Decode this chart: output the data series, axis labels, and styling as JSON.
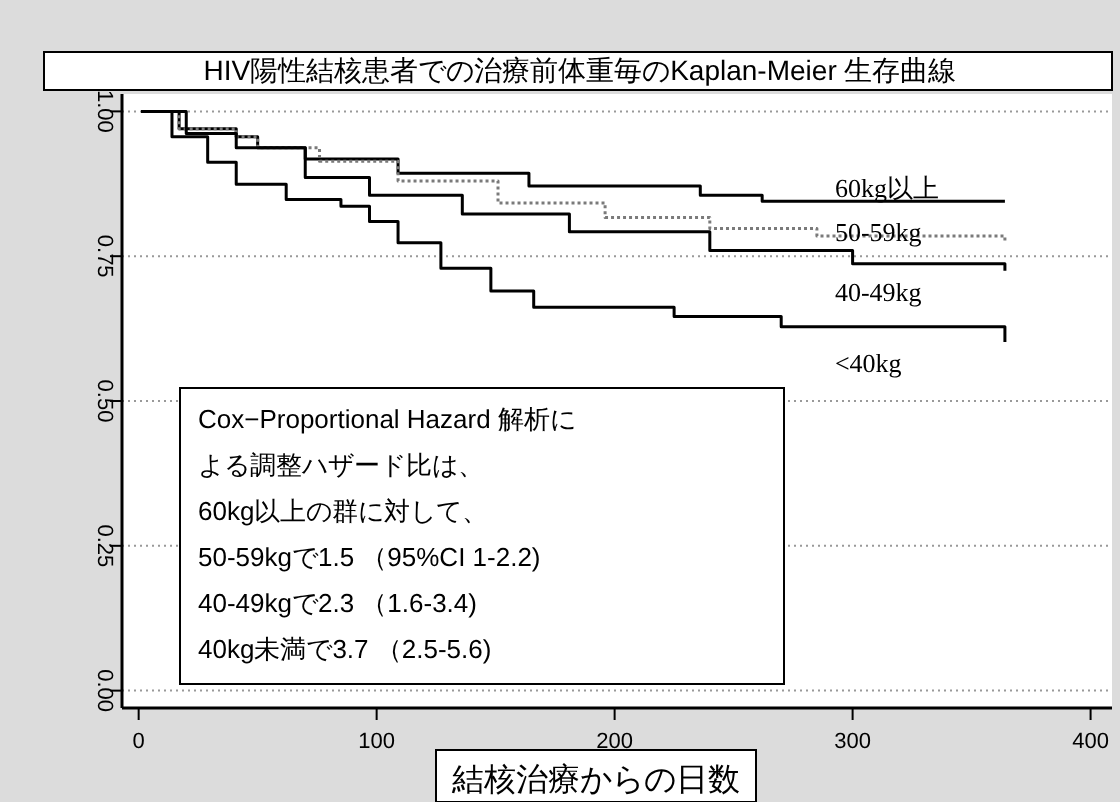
{
  "chart_data": {
    "type": "step",
    "title": "HIV陽性結核患者での治療前体重毎のKaplan-Meier 生存曲線",
    "xlabel": "結核治療からの日数",
    "xlim": [
      -7,
      409
    ],
    "xticks": [
      0,
      100,
      200,
      300,
      400
    ],
    "ylim": [
      -0.03,
      1.03
    ],
    "yticks": [
      {
        "value": 0,
        "label": "0.00"
      },
      {
        "value": 0.25,
        "label": "0.25"
      },
      {
        "value": 0.5,
        "label": "0.50"
      },
      {
        "value": 0.75,
        "label": "0.75"
      },
      {
        "value": 1,
        "label": "1.00"
      }
    ],
    "grid": "y",
    "line_style": "solid",
    "series": [
      {
        "name": "60kg以上",
        "color": "#000000",
        "x": [
          1,
          17,
          41,
          50,
          70,
          109,
          164,
          233,
          236,
          262,
          364
        ],
        "values": [
          1,
          0.97,
          0.956,
          0.937,
          0.918,
          0.893,
          0.871,
          0.871,
          0.855,
          0.845,
          0.845
        ]
      },
      {
        "name": "50-59kg",
        "color": "#7a7a7a",
        "line_style": "dotted",
        "x": [
          1,
          17,
          41,
          50,
          76,
          109,
          151,
          196,
          240,
          285,
          364
        ],
        "values": [
          1,
          0.97,
          0.956,
          0.937,
          0.914,
          0.88,
          0.842,
          0.817,
          0.798,
          0.785,
          0.773
        ]
      },
      {
        "name": "40-49kg",
        "color": "#000000",
        "x": [
          1,
          20,
          41,
          70,
          97,
          136,
          181,
          240,
          300,
          364
        ],
        "values": [
          1,
          0.962,
          0.937,
          0.886,
          0.855,
          0.823,
          0.792,
          0.76,
          0.737,
          0.725
        ]
      },
      {
        "name": "<40kg",
        "color": "#000000",
        "x": [
          1,
          14,
          29,
          41,
          62,
          85,
          97,
          109,
          127,
          148,
          166,
          225,
          270,
          364
        ],
        "values": [
          1,
          0.956,
          0.912,
          0.874,
          0.848,
          0.836,
          0.81,
          0.773,
          0.729,
          0.69,
          0.662,
          0.646,
          0.628,
          0.602
        ]
      }
    ],
    "annotations": [
      "Cox−Proportional Hazard 解析に",
      "よる調整ハザード比は、",
      "60kg以上の群に対して、",
      "50-59kgで1.5 （95%CI 1-2.2)",
      "40-49kgで2.3 （1.6-3.4)",
      "40kg未満で3.7 （2.5-5.6)"
    ]
  }
}
